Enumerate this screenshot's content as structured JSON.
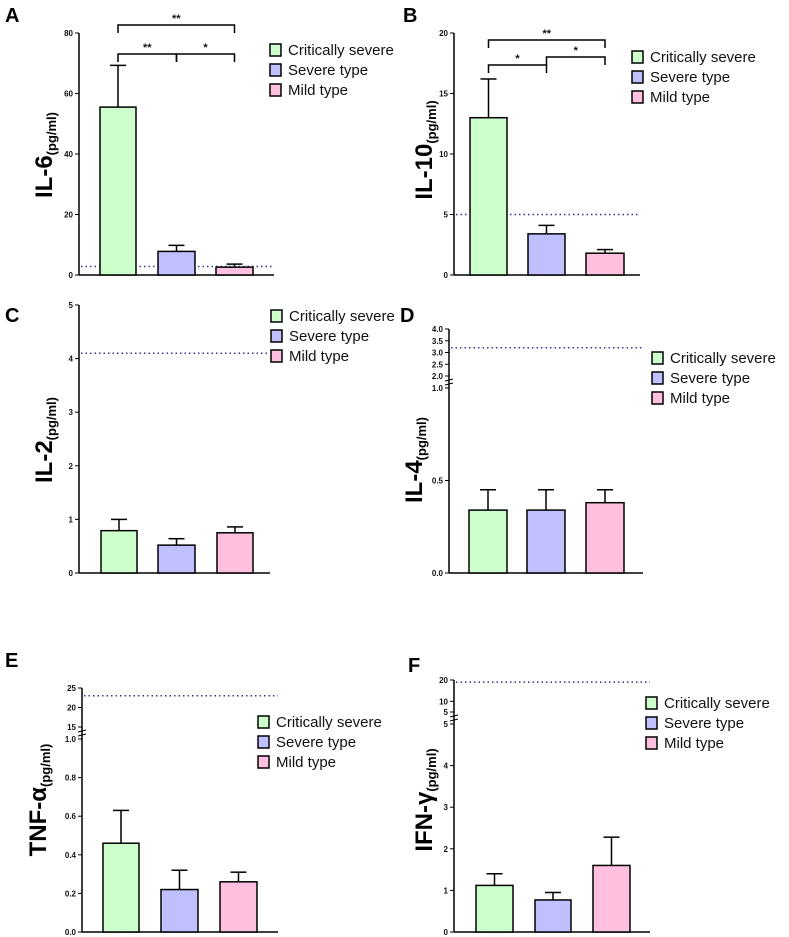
{
  "legend": [
    "Critically severe",
    "Severe type",
    "Mild type"
  ],
  "colors": {
    "Critically severe": "#ccffcc",
    "Severe type": "#c0c0ff",
    "Mild type": "#ffc0e0",
    "reference_line": "#33339a"
  },
  "chart_data": [
    {
      "type": "bar",
      "letter": "A",
      "ylabel": "IL-6",
      "yunit": "(pg/ml)",
      "categories": [
        "Critically severe",
        "Severe type",
        "Mild type"
      ],
      "values": [
        55.5,
        7.8,
        2.6
      ],
      "error_upper": [
        69.3,
        9.8,
        3.6
      ],
      "reference_line": 2.8,
      "ylim": [
        0,
        80
      ],
      "ticks": [
        "0",
        "20",
        "40",
        "60",
        "80"
      ],
      "significance": [
        {
          "pair": [
            0,
            1
          ],
          "label": "**"
        },
        {
          "pair": [
            1,
            2
          ],
          "label": "*"
        },
        {
          "pair": [
            0,
            2
          ],
          "label": "**"
        }
      ]
    },
    {
      "type": "bar",
      "letter": "B",
      "ylabel": "IL-10",
      "yunit": "(pg/ml)",
      "categories": [
        "Critically severe",
        "Severe type",
        "Mild type"
      ],
      "values": [
        13.0,
        3.4,
        1.8
      ],
      "error_upper": [
        16.2,
        4.1,
        2.1
      ],
      "reference_line": 5,
      "ylim": [
        0,
        20
      ],
      "ticks": [
        "0",
        "5",
        "10",
        "15",
        "20"
      ],
      "significance": [
        {
          "pair": [
            0,
            1
          ],
          "label": "*"
        },
        {
          "pair": [
            1,
            2
          ],
          "label": "*"
        },
        {
          "pair": [
            0,
            2
          ],
          "label": "**"
        }
      ]
    },
    {
      "type": "bar",
      "letter": "C",
      "ylabel": "IL-2",
      "yunit": "(pg/ml)",
      "categories": [
        "Critically severe",
        "Severe type",
        "Mild type"
      ],
      "values": [
        0.79,
        0.52,
        0.75
      ],
      "error_upper": [
        1.0,
        0.64,
        0.86
      ],
      "reference_line": 4.1,
      "ylim": [
        0,
        5
      ],
      "ticks": [
        "0",
        "1",
        "2",
        "3",
        "4",
        "5"
      ],
      "significance": []
    },
    {
      "type": "bar",
      "letter": "D",
      "ylabel": "IL-4",
      "yunit": "(pg/ml)",
      "categories": [
        "Critically severe",
        "Severe type",
        "Mild type"
      ],
      "values": [
        0.34,
        0.34,
        0.38
      ],
      "error_upper": [
        0.45,
        0.45,
        0.45
      ],
      "reference_line": 3.2,
      "ylim": [
        0,
        4.0
      ],
      "axis_break": [
        1.0,
        2.0
      ],
      "ticks": [
        "0.0",
        "0.5",
        "1.0",
        "2.0",
        "2.5",
        "3.0",
        "3.5",
        "4.0"
      ],
      "significance": []
    },
    {
      "type": "bar",
      "letter": "E",
      "ylabel": "TNF-α",
      "yunit": "(pg/ml)",
      "categories": [
        "Critically severe",
        "Severe type",
        "Mild type"
      ],
      "values": [
        0.46,
        0.22,
        0.26
      ],
      "error_upper": [
        0.63,
        0.32,
        0.31
      ],
      "reference_line": 23,
      "ylim": [
        0,
        25
      ],
      "axis_break": [
        1.0,
        15
      ],
      "ticks": [
        "0.0",
        "0.2",
        "0.4",
        "0.6",
        "0.8",
        "1.0",
        "15",
        "20",
        "25"
      ],
      "significance": []
    },
    {
      "type": "bar",
      "letter": "F",
      "ylabel": "IFN-γ",
      "yunit": "(pg/ml)",
      "categories": [
        "Critically severe",
        "Severe type",
        "Mild type"
      ],
      "values": [
        1.12,
        0.77,
        1.6
      ],
      "error_upper": [
        1.4,
        0.95,
        2.28
      ],
      "reference_line": 19,
      "ylim": [
        0,
        20
      ],
      "axis_break": [
        5,
        5
      ],
      "ticks": [
        "0",
        "1",
        "2",
        "3",
        "4",
        "5",
        "5",
        "10",
        "20"
      ],
      "significance": []
    }
  ]
}
